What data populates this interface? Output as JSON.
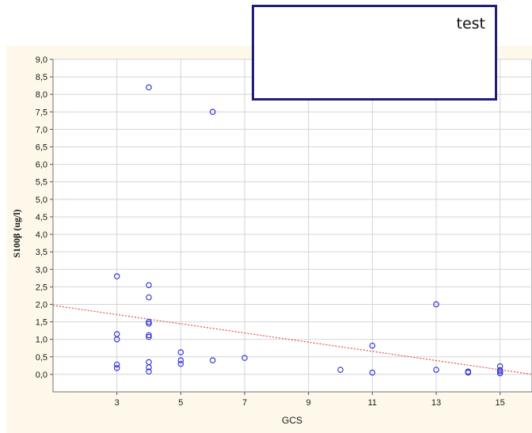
{
  "chart_data": {
    "type": "scatter",
    "title": "",
    "xlabel": "GCS",
    "ylabel": "S100β (ug/l)",
    "xlim": [
      1,
      16
    ],
    "ylim": [
      -0.5,
      9.0
    ],
    "xticks": [
      3,
      5,
      7,
      9,
      11,
      13,
      15
    ],
    "xtick_labels": [
      "3",
      "5",
      "7",
      "9",
      "11",
      "13",
      "15"
    ],
    "yticks": [
      9.0,
      8.5,
      8.0,
      7.5,
      7.0,
      6.5,
      6.0,
      5.5,
      5.0,
      4.5,
      4.0,
      3.5,
      3.0,
      2.5,
      2.0,
      1.5,
      1.0,
      0.5,
      0.0
    ],
    "ytick_labels": [
      "9,0",
      "8,5",
      "8,0",
      "7,5",
      "7,0",
      "6,5",
      "6,0",
      "5,5",
      "5,0",
      "4,5",
      "4,0",
      "3,5",
      "3,0",
      "2,5",
      "2,0",
      "1,5",
      "1,0",
      "0,5",
      "0,0"
    ],
    "grid": true,
    "points": [
      {
        "x": 3,
        "y": 2.8
      },
      {
        "x": 3,
        "y": 1.15
      },
      {
        "x": 3,
        "y": 1.0
      },
      {
        "x": 3,
        "y": 0.28
      },
      {
        "x": 3,
        "y": 0.18
      },
      {
        "x": 4,
        "y": 8.2
      },
      {
        "x": 4,
        "y": 2.55
      },
      {
        "x": 4,
        "y": 2.2
      },
      {
        "x": 4,
        "y": 1.5
      },
      {
        "x": 4,
        "y": 1.45
      },
      {
        "x": 4,
        "y": 1.12
      },
      {
        "x": 4,
        "y": 1.07
      },
      {
        "x": 4,
        "y": 0.35
      },
      {
        "x": 4,
        "y": 0.2
      },
      {
        "x": 4,
        "y": 0.08
      },
      {
        "x": 5,
        "y": 0.63
      },
      {
        "x": 5,
        "y": 0.4
      },
      {
        "x": 5,
        "y": 0.3
      },
      {
        "x": 6,
        "y": 7.5
      },
      {
        "x": 6,
        "y": 0.4
      },
      {
        "x": 7,
        "y": 0.47
      },
      {
        "x": 10,
        "y": 0.13
      },
      {
        "x": 11,
        "y": 0.82
      },
      {
        "x": 11,
        "y": 0.05
      },
      {
        "x": 13,
        "y": 2.0
      },
      {
        "x": 13,
        "y": 0.13
      },
      {
        "x": 14,
        "y": 0.08
      },
      {
        "x": 14,
        "y": 0.05
      },
      {
        "x": 15,
        "y": 0.23
      },
      {
        "x": 15,
        "y": 0.12
      },
      {
        "x": 15,
        "y": 0.08
      },
      {
        "x": 15,
        "y": 0.03
      }
    ],
    "trendline": {
      "x": [
        1,
        16
      ],
      "y": [
        1.97,
        0.0
      ],
      "style": "dotted"
    },
    "colors": {
      "points": "#3a3ad8",
      "trendline": "#e05050",
      "grid": "#d4d4d4",
      "background": "#fdf8ea"
    }
  },
  "overlay": {
    "text": "test"
  }
}
